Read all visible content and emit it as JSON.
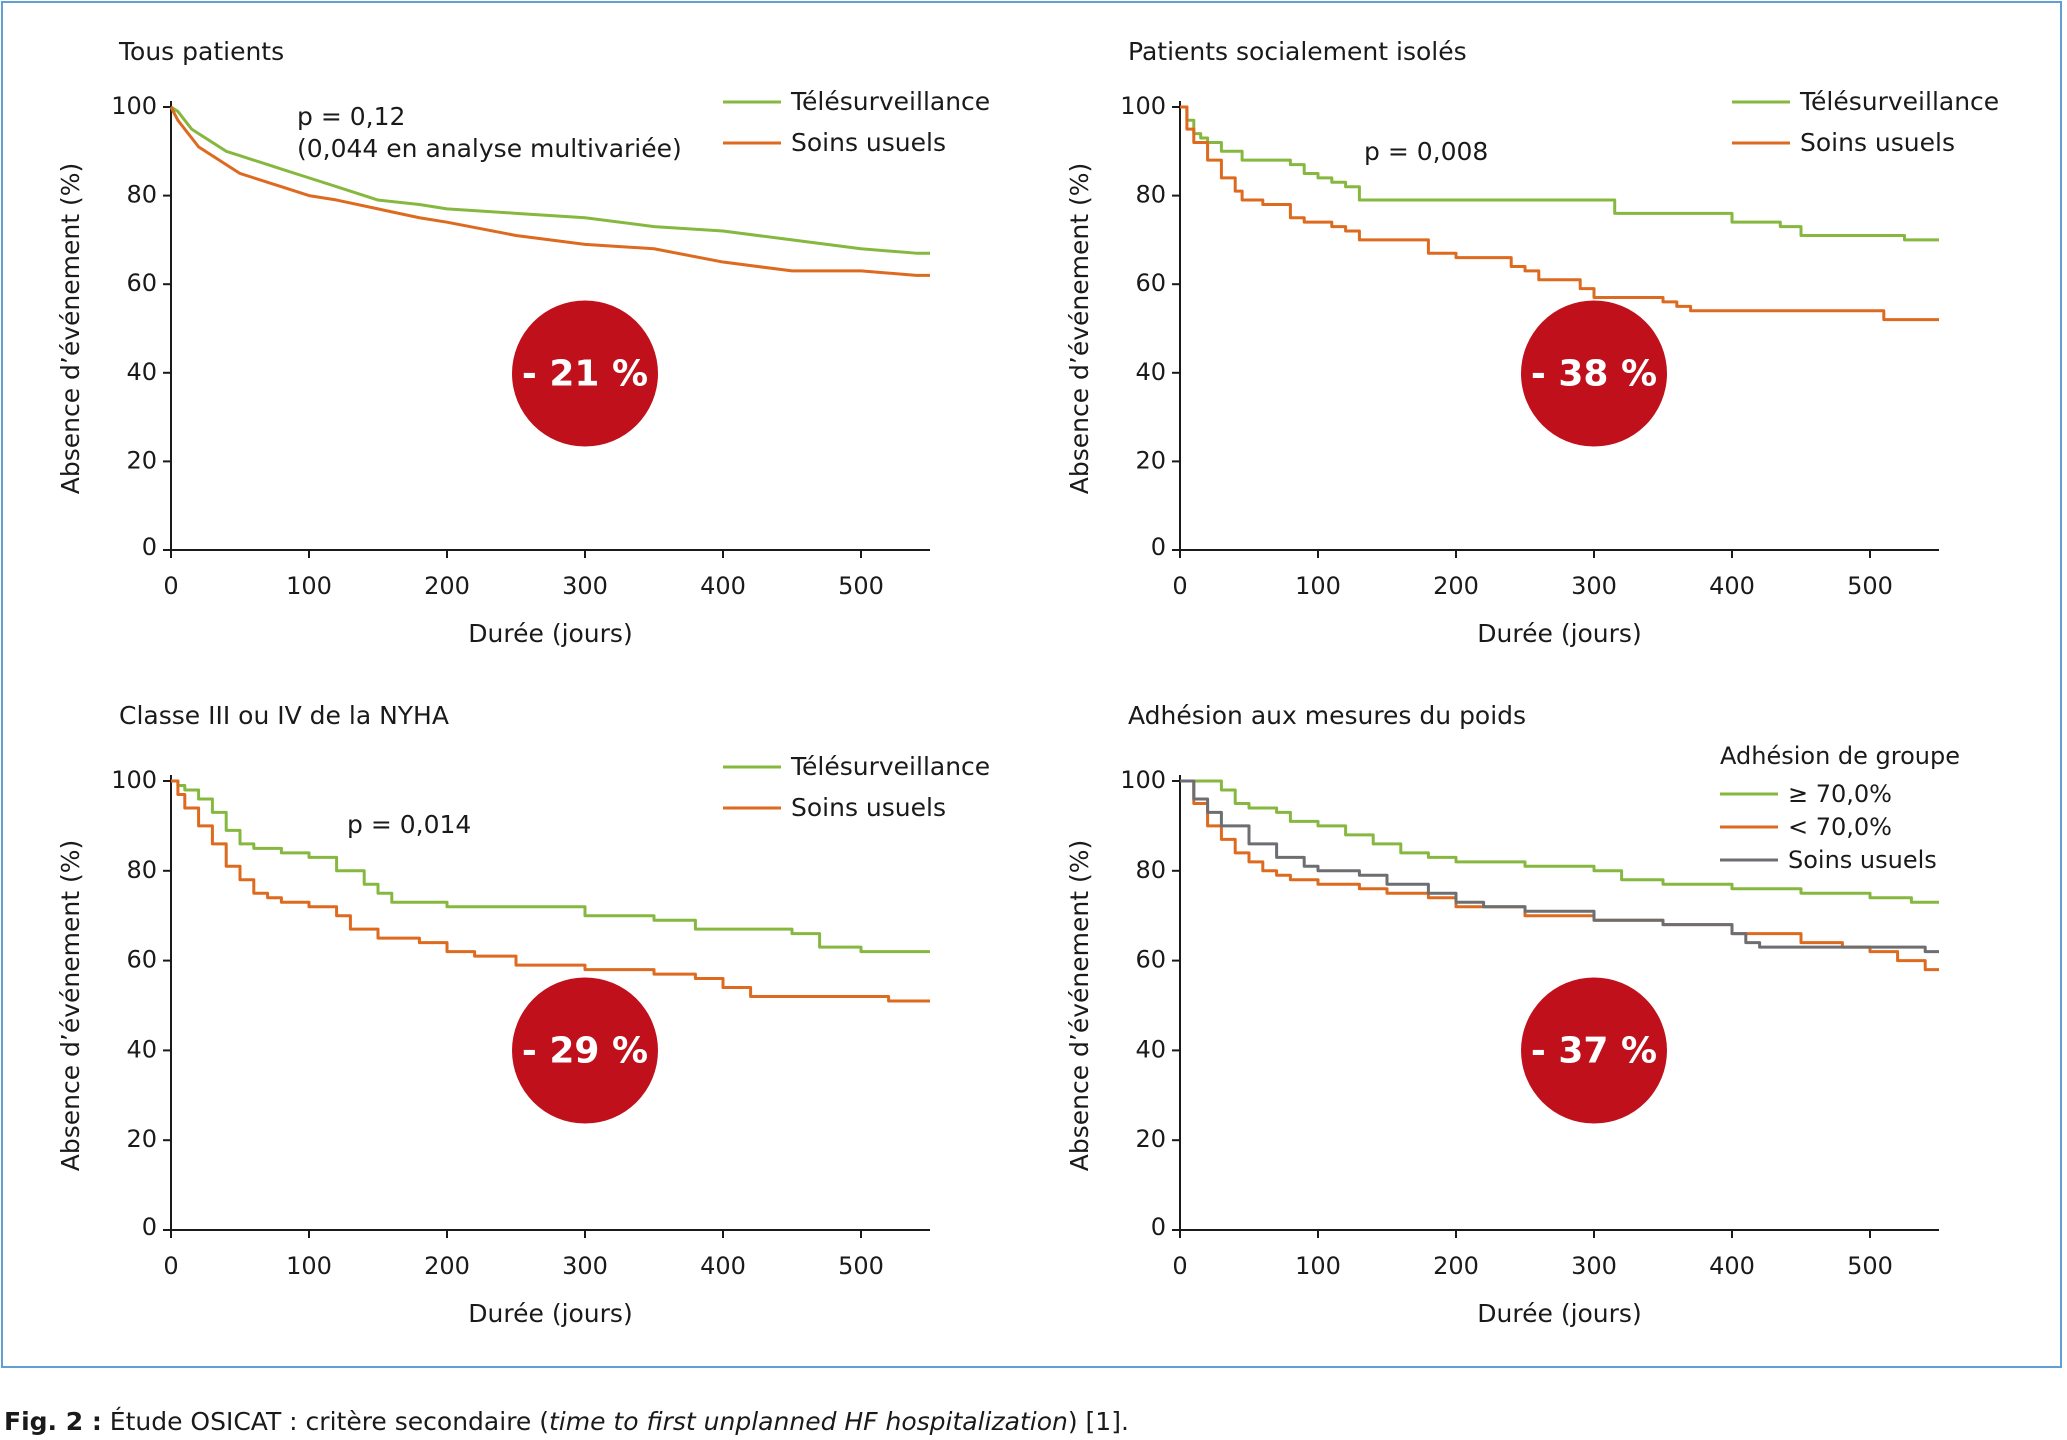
{
  "figure": {
    "caption_label": "Fig. 2 :",
    "caption_text_before": " Étude OSICAT : critère secondaire (",
    "caption_italic": "time to first unplanned HF hospitalization",
    "caption_text_after": ") [1]."
  },
  "colors": {
    "telesurveillance": "#86b840",
    "soins_usuels": "#dd6a1f",
    "soins_usuels_gray": "#6d6e71",
    "badge": "#c0101c",
    "frame": "#5f9fd6"
  },
  "chart_data": [
    {
      "type": "line",
      "title": "Tous patients",
      "xlabel": "Durée (jours)",
      "ylabel": "Absence d’événement (%)",
      "xlim": [
        0,
        550
      ],
      "ylim": [
        0,
        100
      ],
      "xticks": [
        "0",
        "100",
        "200",
        "300",
        "400",
        "500"
      ],
      "yticks": [
        "0",
        "20",
        "40",
        "60",
        "80",
        "100"
      ],
      "annotations": [
        "p = 0,12",
        "(0,044 en analyse multivariée)"
      ],
      "badge": "- 21 %",
      "legend_title": "",
      "legend_position": "top-right",
      "series": [
        {
          "name": "Télésurveillance",
          "color_key": "telesurveillance",
          "x": [
            0,
            5,
            10,
            15,
            20,
            30,
            40,
            50,
            60,
            70,
            80,
            100,
            120,
            150,
            180,
            200,
            250,
            300,
            350,
            400,
            450,
            500,
            540,
            550
          ],
          "y": [
            100,
            99,
            97,
            95,
            94,
            92,
            90,
            89,
            88,
            87,
            86,
            84,
            82,
            79,
            78,
            77,
            76,
            75,
            73,
            72,
            70,
            68,
            67,
            67
          ]
        },
        {
          "name": "Soins usuels",
          "color_key": "soins_usuels",
          "x": [
            0,
            5,
            10,
            15,
            20,
            30,
            40,
            50,
            60,
            70,
            80,
            100,
            120,
            150,
            180,
            200,
            250,
            300,
            350,
            400,
            450,
            500,
            540,
            550
          ],
          "y": [
            100,
            97,
            95,
            93,
            91,
            89,
            87,
            85,
            84,
            83,
            82,
            80,
            79,
            77,
            75,
            74,
            71,
            69,
            68,
            65,
            63,
            63,
            62,
            62
          ]
        }
      ]
    },
    {
      "type": "line",
      "title": "Patients socialement isolés",
      "xlabel": "Durée (jours)",
      "ylabel": "Absence d’événement (%)",
      "xlim": [
        0,
        550
      ],
      "ylim": [
        0,
        100
      ],
      "xticks": [
        "0",
        "100",
        "200",
        "300",
        "400",
        "500"
      ],
      "yticks": [
        "0",
        "20",
        "40",
        "60",
        "80",
        "100"
      ],
      "annotations": [
        "p = 0,008"
      ],
      "badge": "- 38 %",
      "legend_title": "",
      "legend_position": "top-right",
      "series": [
        {
          "name": "Télésurveillance",
          "color_key": "telesurveillance",
          "x": [
            0,
            5,
            10,
            15,
            20,
            30,
            45,
            80,
            90,
            100,
            110,
            120,
            130,
            200,
            250,
            300,
            315,
            330,
            360,
            400,
            420,
            435,
            450,
            500,
            525,
            550
          ],
          "y": [
            100,
            97,
            94,
            93,
            92,
            90,
            88,
            87,
            85,
            84,
            83,
            82,
            79,
            79,
            79,
            79,
            76,
            76,
            76,
            74,
            74,
            73,
            71,
            71,
            70,
            70
          ],
          "step": true
        },
        {
          "name": "Soins usuels",
          "color_key": "soins_usuels",
          "x": [
            0,
            5,
            10,
            20,
            30,
            40,
            45,
            60,
            80,
            90,
            110,
            120,
            130,
            170,
            180,
            200,
            230,
            240,
            250,
            260,
            290,
            300,
            310,
            350,
            360,
            370,
            400,
            450,
            500,
            510,
            525,
            550
          ],
          "y": [
            100,
            95,
            92,
            88,
            84,
            81,
            79,
            78,
            75,
            74,
            73,
            72,
            70,
            70,
            67,
            66,
            66,
            64,
            63,
            61,
            59,
            57,
            57,
            56,
            55,
            54,
            54,
            54,
            54,
            52,
            52,
            52
          ],
          "step": true
        }
      ]
    },
    {
      "type": "line",
      "title": "Classe III ou IV de la NYHA",
      "xlabel": "Durée (jours)",
      "ylabel": "Absence d’événement (%)",
      "xlim": [
        0,
        550
      ],
      "ylim": [
        0,
        100
      ],
      "xticks": [
        "0",
        "100",
        "200",
        "300",
        "400",
        "500"
      ],
      "yticks": [
        "0",
        "20",
        "40",
        "60",
        "80",
        "100"
      ],
      "annotations": [
        "p = 0,014"
      ],
      "badge": "- 29 %",
      "legend_title": "",
      "legend_position": "top-right",
      "series": [
        {
          "name": "Télésurveillance",
          "color_key": "telesurveillance",
          "x": [
            0,
            5,
            10,
            20,
            30,
            40,
            50,
            60,
            80,
            100,
            120,
            140,
            150,
            160,
            200,
            250,
            300,
            350,
            380,
            400,
            450,
            470,
            500,
            550
          ],
          "y": [
            100,
            99,
            98,
            96,
            93,
            89,
            86,
            85,
            84,
            83,
            80,
            77,
            75,
            73,
            72,
            72,
            70,
            69,
            67,
            67,
            66,
            63,
            62,
            62
          ],
          "step": true
        },
        {
          "name": "Soins usuels",
          "color_key": "soins_usuels",
          "x": [
            0,
            5,
            10,
            20,
            30,
            40,
            50,
            60,
            70,
            80,
            100,
            120,
            130,
            150,
            180,
            200,
            220,
            250,
            280,
            300,
            350,
            380,
            400,
            420,
            450,
            500,
            520,
            550
          ],
          "y": [
            100,
            97,
            94,
            90,
            86,
            81,
            78,
            75,
            74,
            73,
            72,
            70,
            67,
            65,
            64,
            62,
            61,
            59,
            59,
            58,
            57,
            56,
            54,
            52,
            52,
            52,
            51,
            51
          ],
          "step": true
        }
      ]
    },
    {
      "type": "line",
      "title": "Adhésion aux mesures du poids",
      "xlabel": "Durée (jours)",
      "ylabel": "Absence d’événement (%)",
      "xlim": [
        0,
        550
      ],
      "ylim": [
        0,
        100
      ],
      "xticks": [
        "0",
        "100",
        "200",
        "300",
        "400",
        "500"
      ],
      "yticks": [
        "0",
        "20",
        "40",
        "60",
        "80",
        "100"
      ],
      "annotations": [],
      "badge": "- 37 %",
      "legend_title": "Adhésion de groupe",
      "legend_position": "top-right",
      "series": [
        {
          "name": "≥ 70,0%",
          "color_key": "telesurveillance",
          "x": [
            0,
            20,
            30,
            40,
            50,
            70,
            80,
            100,
            120,
            140,
            160,
            180,
            200,
            250,
            300,
            320,
            350,
            400,
            450,
            500,
            530,
            550
          ],
          "y": [
            100,
            100,
            98,
            95,
            94,
            93,
            91,
            90,
            88,
            86,
            84,
            83,
            82,
            81,
            80,
            78,
            77,
            76,
            75,
            74,
            73,
            73
          ],
          "step": true
        },
        {
          "name": "< 70,0%",
          "color_key": "soins_usuels",
          "x": [
            0,
            10,
            20,
            30,
            40,
            50,
            60,
            70,
            80,
            100,
            130,
            150,
            180,
            200,
            250,
            300,
            350,
            400,
            450,
            480,
            500,
            520,
            540,
            550
          ],
          "y": [
            100,
            95,
            90,
            87,
            84,
            82,
            80,
            79,
            78,
            77,
            76,
            75,
            74,
            72,
            70,
            69,
            68,
            66,
            64,
            63,
            62,
            60,
            58,
            58
          ],
          "step": true
        },
        {
          "name": "Soins usuels",
          "color_key": "soins_usuels_gray",
          "x": [
            0,
            10,
            20,
            30,
            50,
            70,
            90,
            100,
            130,
            150,
            180,
            200,
            220,
            250,
            300,
            350,
            400,
            410,
            420,
            450,
            500,
            540,
            550
          ],
          "y": [
            100,
            96,
            93,
            90,
            86,
            83,
            81,
            80,
            79,
            77,
            75,
            73,
            72,
            71,
            69,
            68,
            66,
            64,
            63,
            63,
            63,
            62,
            62
          ],
          "step": true
        }
      ]
    }
  ]
}
